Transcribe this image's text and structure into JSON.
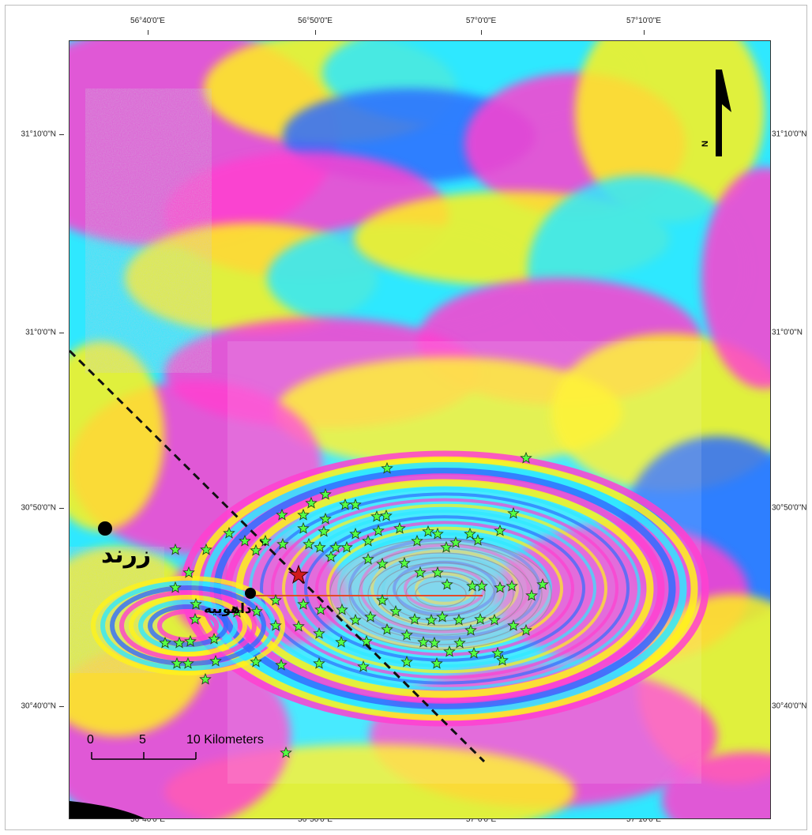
{
  "map": {
    "longitude_labels": [
      "56°40'0\"E",
      "56°50'0\"E",
      "57°0'0\"E",
      "57°10'0\"E"
    ],
    "latitude_labels": [
      "31°10'0\"N",
      "31°0'0\"N",
      "30°50'0\"N",
      "30°40'0\"N"
    ],
    "north_arrow_label": "N",
    "scale_bar": {
      "ticks": [
        "0",
        "5"
      ],
      "end_label": "10 Kilometers"
    },
    "places": [
      {
        "name": "زرند"
      },
      {
        "name": "داهوییه"
      }
    ],
    "colors": {
      "fringe_magenta": "#ff3fd0",
      "fringe_yellow": "#fff21a",
      "fringe_cyan": "#2fe8ff",
      "fringe_blue": "#2f6dff",
      "star_fill": "#55ff44",
      "epicenter_star": "#d11a1a",
      "fault_line": "#e24a2a",
      "dashed_line": "#111111"
    }
  }
}
